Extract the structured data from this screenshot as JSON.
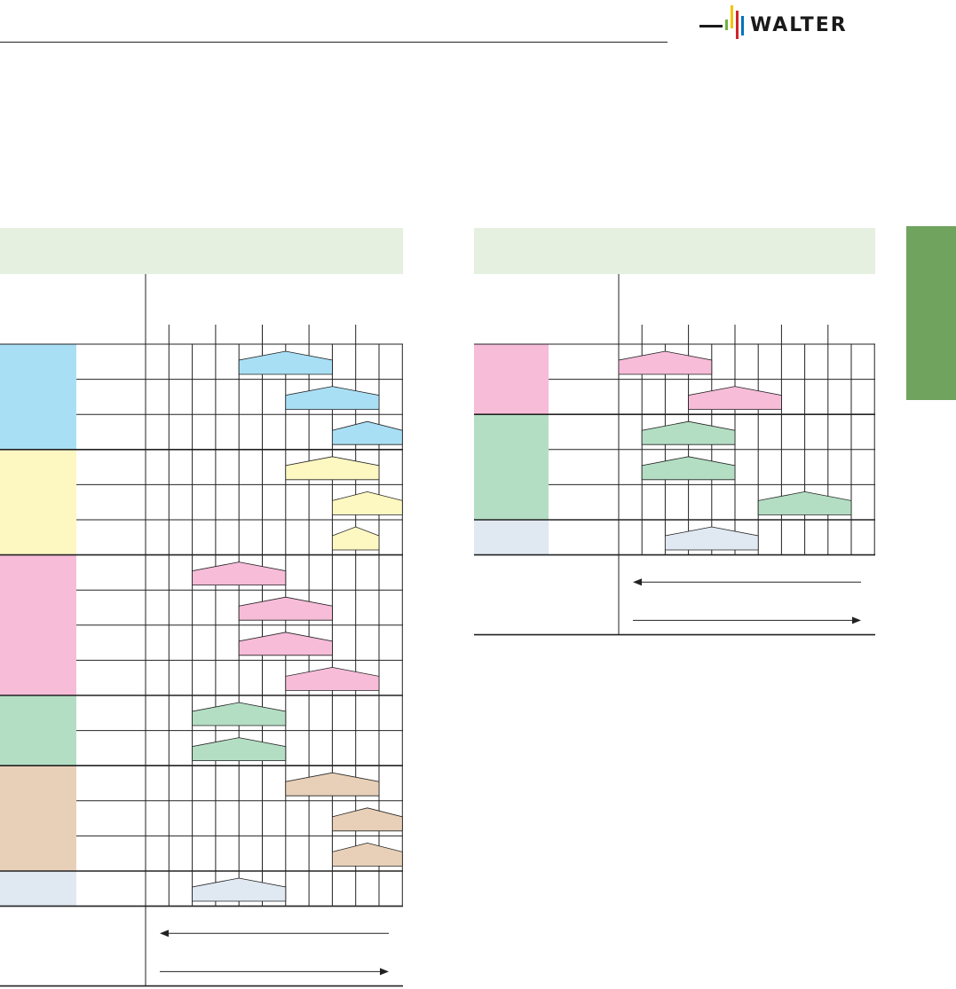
{
  "brand": {
    "logo_text": "WALTER",
    "logo_bar_colors": [
      "#f2c300",
      "#d2232a",
      "#0072bc",
      "#6cb33f"
    ]
  },
  "colors": {
    "blue": "#a9dff5",
    "yellow": "#fdf7c2",
    "pink": "#f6bcd8",
    "green": "#b4dec4",
    "tan": "#e8d0b8",
    "lightblue": "#e0e8f2",
    "header_band": "#e5f0e0",
    "side_tab": "#6fa35e",
    "line": "#222222"
  },
  "left_table": {
    "groups": [
      {
        "color": "blue",
        "rows": 3
      },
      {
        "color": "yellow",
        "rows": 3
      },
      {
        "color": "pink",
        "rows": 4
      },
      {
        "color": "green",
        "rows": 2
      },
      {
        "color": "tan",
        "rows": 3
      },
      {
        "color": "lightblue",
        "rows": 1
      }
    ],
    "bars": [
      {
        "row": 0,
        "start": 4,
        "end": 8,
        "color": "blue"
      },
      {
        "row": 1,
        "start": 6,
        "end": 10,
        "color": "blue"
      },
      {
        "row": 2,
        "start": 8,
        "end": 11,
        "color": "blue"
      },
      {
        "row": 3,
        "start": 6,
        "end": 10,
        "color": "yellow"
      },
      {
        "row": 4,
        "start": 8,
        "end": 11,
        "color": "yellow"
      },
      {
        "row": 5,
        "start": 8,
        "end": 10,
        "color": "yellow"
      },
      {
        "row": 6,
        "start": 2,
        "end": 6,
        "color": "pink"
      },
      {
        "row": 7,
        "start": 4,
        "end": 8,
        "color": "pink"
      },
      {
        "row": 8,
        "start": 4,
        "end": 8,
        "color": "pink"
      },
      {
        "row": 9,
        "start": 6,
        "end": 10,
        "color": "pink"
      },
      {
        "row": 10,
        "start": 2,
        "end": 6,
        "color": "green"
      },
      {
        "row": 11,
        "start": 2,
        "end": 6,
        "color": "green"
      },
      {
        "row": 12,
        "start": 6,
        "end": 10,
        "color": "tan"
      },
      {
        "row": 13,
        "start": 8,
        "end": 11,
        "color": "tan"
      },
      {
        "row": 14,
        "start": 8,
        "end": 11,
        "color": "tan"
      },
      {
        "row": 15,
        "start": 2,
        "end": 6,
        "color": "lightblue"
      }
    ]
  },
  "right_table": {
    "groups": [
      {
        "color": "pink",
        "rows": 2
      },
      {
        "color": "green",
        "rows": 3
      },
      {
        "color": "lightblue",
        "rows": 1
      }
    ],
    "bars": [
      {
        "row": 0,
        "start": 0,
        "end": 4,
        "color": "pink"
      },
      {
        "row": 1,
        "start": 3,
        "end": 7,
        "color": "pink"
      },
      {
        "row": 2,
        "start": 1,
        "end": 5,
        "color": "green"
      },
      {
        "row": 3,
        "start": 1,
        "end": 5,
        "color": "green"
      },
      {
        "row": 4,
        "start": 6,
        "end": 10,
        "color": "green"
      },
      {
        "row": 5,
        "start": 2,
        "end": 6,
        "color": "lightblue"
      }
    ]
  }
}
